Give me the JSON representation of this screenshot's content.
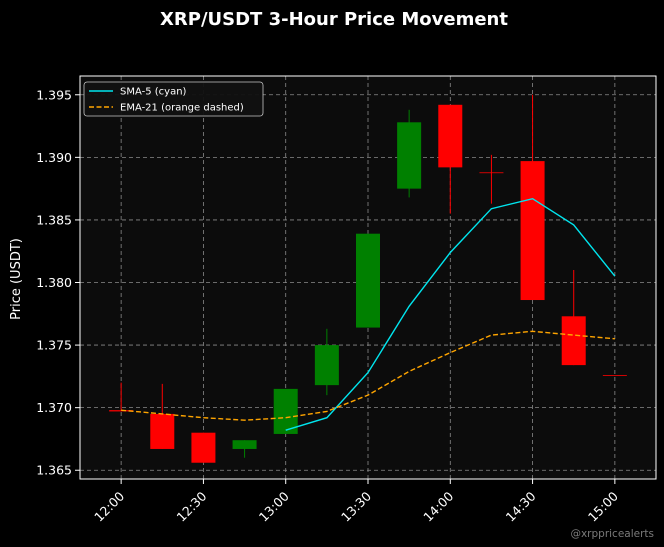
{
  "chart_data": {
    "type": "candlestick",
    "title": "XRP/USDT 3-Hour Price Movement",
    "ylabel": "Price (USDT)",
    "xlabel": "",
    "ylim": [
      1.3643,
      1.3965
    ],
    "yticks": [
      1.365,
      1.37,
      1.375,
      1.38,
      1.385,
      1.39,
      1.395
    ],
    "ytick_labels": [
      "1.365",
      "1.370",
      "1.375",
      "1.380",
      "1.385",
      "1.390",
      "1.395"
    ],
    "xticks": [
      "12:00",
      "12:30",
      "13:00",
      "13:30",
      "14:00",
      "14:30",
      "15:00"
    ],
    "grid": true,
    "legend_position": "top-left",
    "colors": {
      "up": "#008000",
      "down": "#ff0000",
      "sma": "#00e5ee",
      "ema": "#ffa500",
      "background": "#000000",
      "plot_background": "#0c0c0c",
      "grid": "#8a8a8a"
    },
    "candles": [
      {
        "time": "12:00",
        "open": 1.3698,
        "close": 1.3697,
        "high": 1.372,
        "low": 1.3697
      },
      {
        "time": "12:15",
        "open": 1.3695,
        "close": 1.3667,
        "high": 1.3719,
        "low": 1.3667
      },
      {
        "time": "12:30",
        "open": 1.368,
        "close": 1.3656,
        "high": 1.368,
        "low": 1.3656
      },
      {
        "time": "12:45",
        "open": 1.3667,
        "close": 1.3674,
        "high": 1.3674,
        "low": 1.366
      },
      {
        "time": "13:00",
        "open": 1.3679,
        "close": 1.3715,
        "high": 1.3715,
        "low": 1.3679
      },
      {
        "time": "13:15",
        "open": 1.3718,
        "close": 1.375,
        "high": 1.3763,
        "low": 1.371
      },
      {
        "time": "13:30",
        "open": 1.3764,
        "close": 1.3839,
        "high": 1.3839,
        "low": 1.3764
      },
      {
        "time": "13:45",
        "open": 1.3875,
        "close": 1.3928,
        "high": 1.3938,
        "low": 1.3868
      },
      {
        "time": "14:00",
        "open": 1.3942,
        "close": 1.3892,
        "high": 1.3942,
        "low": 1.3855
      },
      {
        "time": "14:15",
        "open": 1.3888,
        "close": 1.3888,
        "high": 1.3902,
        "low": 1.3863
      },
      {
        "time": "14:30",
        "open": 1.3897,
        "close": 1.3786,
        "high": 1.395,
        "low": 1.3786
      },
      {
        "time": "14:45",
        "open": 1.3773,
        "close": 1.3734,
        "high": 1.381,
        "low": 1.3734
      },
      {
        "time": "15:00",
        "open": 1.3726,
        "close": 1.3726,
        "high": 1.3726,
        "low": 1.3726
      }
    ],
    "series": [
      {
        "name": "SMA-5 (cyan)",
        "style": "solid",
        "color": "#00e5ee",
        "times": [
          "13:00",
          "13:15",
          "13:30",
          "13:45",
          "14:00",
          "14:15",
          "14:30",
          "14:45",
          "15:00"
        ],
        "values": [
          1.3682,
          1.3692,
          1.3728,
          1.3781,
          1.3824,
          1.3859,
          1.3867,
          1.3846,
          1.3805
        ]
      },
      {
        "name": "EMA-21 (orange dashed)",
        "style": "dashed",
        "color": "#ffa500",
        "times": [
          "12:00",
          "12:15",
          "12:30",
          "12:45",
          "13:00",
          "13:15",
          "13:30",
          "13:45",
          "14:00",
          "14:15",
          "14:30",
          "14:45",
          "15:00"
        ],
        "values": [
          1.3698,
          1.3695,
          1.3692,
          1.369,
          1.3692,
          1.3697,
          1.371,
          1.3729,
          1.3744,
          1.3758,
          1.3761,
          1.3758,
          1.3755
        ]
      }
    ],
    "watermark": "@xrppricealerts"
  }
}
